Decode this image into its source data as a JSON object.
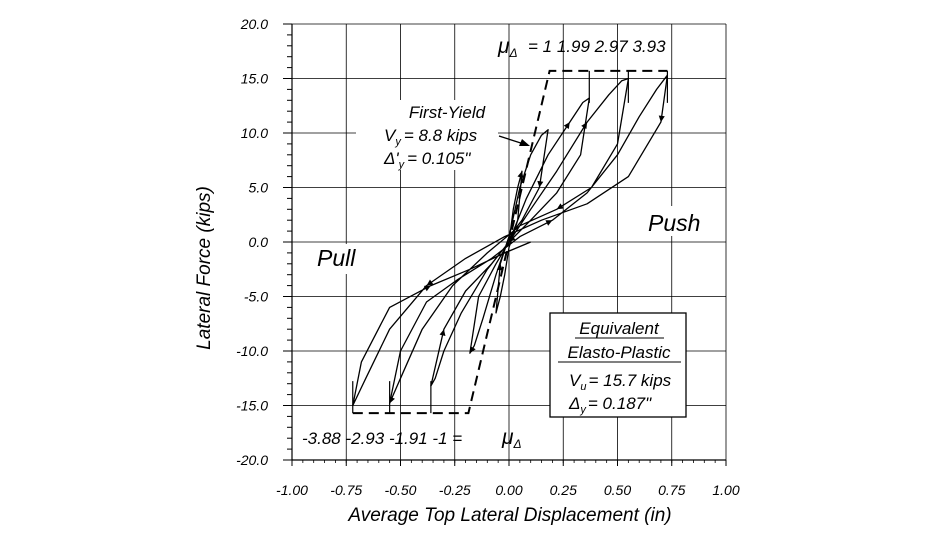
{
  "chart_data": {
    "type": "line",
    "xlabel": "Average Top Lateral Displacement (in)",
    "ylabel": "Lateral Force (kips)",
    "xlim": [
      -1.0,
      1.0
    ],
    "ylim": [
      -20.0,
      20.0
    ],
    "x_ticks": [
      "-1.00",
      "-0.75",
      "-0.50",
      "-0.25",
      "0.00",
      "0.25",
      "0.50",
      "0.75",
      "1.00"
    ],
    "y_ticks": [
      "20.0",
      "15.0",
      "10.0",
      "5.0",
      "0.0",
      "-5.0",
      "-10.0",
      "-15.0",
      "-20.0"
    ],
    "grid": true,
    "series": [
      {
        "name": "",
        "style": "solid",
        "description_role": "hysteresis",
        "x": [
          0,
          0.02,
          0.04,
          0.06,
          0.04,
          0.0,
          -0.02,
          -0.04,
          -0.06,
          -0.04,
          0.0,
          0.05,
          0.1,
          0.15,
          0.18,
          0.14,
          0.06,
          0.0,
          -0.06,
          -0.12,
          -0.16,
          -0.18,
          -0.14,
          -0.06,
          0.0,
          0.08,
          0.18,
          0.28,
          0.34,
          0.37,
          0.33,
          0.22,
          0.1,
          0.0,
          -0.1,
          -0.22,
          -0.3,
          -0.34,
          -0.36,
          -0.3,
          -0.2,
          -0.08,
          0.0,
          0.1,
          0.22,
          0.36,
          0.46,
          0.52,
          0.55,
          0.5,
          0.38,
          0.22,
          0.05,
          -0.1,
          -0.26,
          -0.4,
          -0.5,
          -0.55,
          -0.5,
          -0.38,
          -0.24,
          -0.08,
          0.05,
          0.2,
          0.36,
          0.5,
          0.6,
          0.68,
          0.73,
          0.7,
          0.55,
          0.36,
          0.15,
          -0.02,
          -0.2,
          -0.38,
          -0.55,
          -0.66,
          -0.72,
          -0.68,
          -0.55,
          -0.36,
          -0.18,
          -0.02,
          0.1
        ],
        "y": [
          0,
          3.0,
          5.0,
          6.5,
          2.0,
          -0.5,
          -3.0,
          -5.0,
          -6.5,
          -2.0,
          0.5,
          5.0,
          8.0,
          9.8,
          10.3,
          5.0,
          2.0,
          0.5,
          -3.0,
          -7.0,
          -9.5,
          -10.2,
          -5.0,
          -2.0,
          0.0,
          4.0,
          8.0,
          11.0,
          12.8,
          13.2,
          8.0,
          4.5,
          2.0,
          0.0,
          -2.5,
          -6.5,
          -10.0,
          -12.5,
          -13.2,
          -8.0,
          -4.5,
          -2.0,
          0.0,
          3.0,
          6.5,
          11.0,
          13.5,
          14.8,
          15.0,
          9.0,
          5.0,
          3.0,
          1.5,
          -1.0,
          -4.0,
          -8.0,
          -12.5,
          -14.8,
          -10.0,
          -5.5,
          -3.5,
          -1.5,
          0.5,
          2.0,
          4.5,
          8.0,
          11.5,
          14.0,
          15.3,
          11.0,
          6.0,
          3.5,
          2.0,
          0.5,
          -1.5,
          -4.0,
          -8.0,
          -12.5,
          -15.0,
          -11.0,
          -6.0,
          -4.0,
          -2.5,
          -1.0,
          0.0
        ]
      },
      {
        "name": "Equivalent Elasto-Plastic",
        "style": "dashed",
        "x": [
          -0.72,
          -0.187,
          0.187,
          0.73
        ],
        "y": [
          -15.7,
          -15.7,
          15.7,
          15.7
        ]
      },
      {
        "name": "",
        "style": "dashed",
        "description_role": "ductility-levels",
        "x": [
          0.37,
          0.55,
          0.73,
          -0.36,
          -0.55,
          -0.72
        ],
        "y": [
          15.7,
          15.7,
          15.7,
          -15.7,
          -15.7,
          -15.7
        ]
      }
    ],
    "annotations": {
      "mu_top_symbol": "μ",
      "mu_top_sub": "Δ",
      "mu_top_values": "= 1  1.99  2.97  3.93",
      "mu_bottom_values": "-3.88 -2.93 -1.91  -1 =",
      "mu_bottom_symbol": "μ",
      "mu_bottom_sub": "Δ",
      "first_yield_title": "First-Yield",
      "first_yield_v_prefix": "V",
      "first_yield_v_sub": "y",
      "first_yield_v_value": "= 8.8 kips",
      "first_yield_d_prefix": "Δ'",
      "first_yield_d_sub": "y",
      "first_yield_d_value": "= 0.105\"",
      "push_label": "Push",
      "pull_label": "Pull",
      "ep_title_1": "Equivalent",
      "ep_title_2": "Elasto-Plastic",
      "ep_v_prefix": "V",
      "ep_v_sub": "u",
      "ep_v_value": "= 15.7 kips",
      "ep_d_prefix": "Δ",
      "ep_d_sub": "y",
      "ep_d_value": "= 0.187\""
    }
  }
}
